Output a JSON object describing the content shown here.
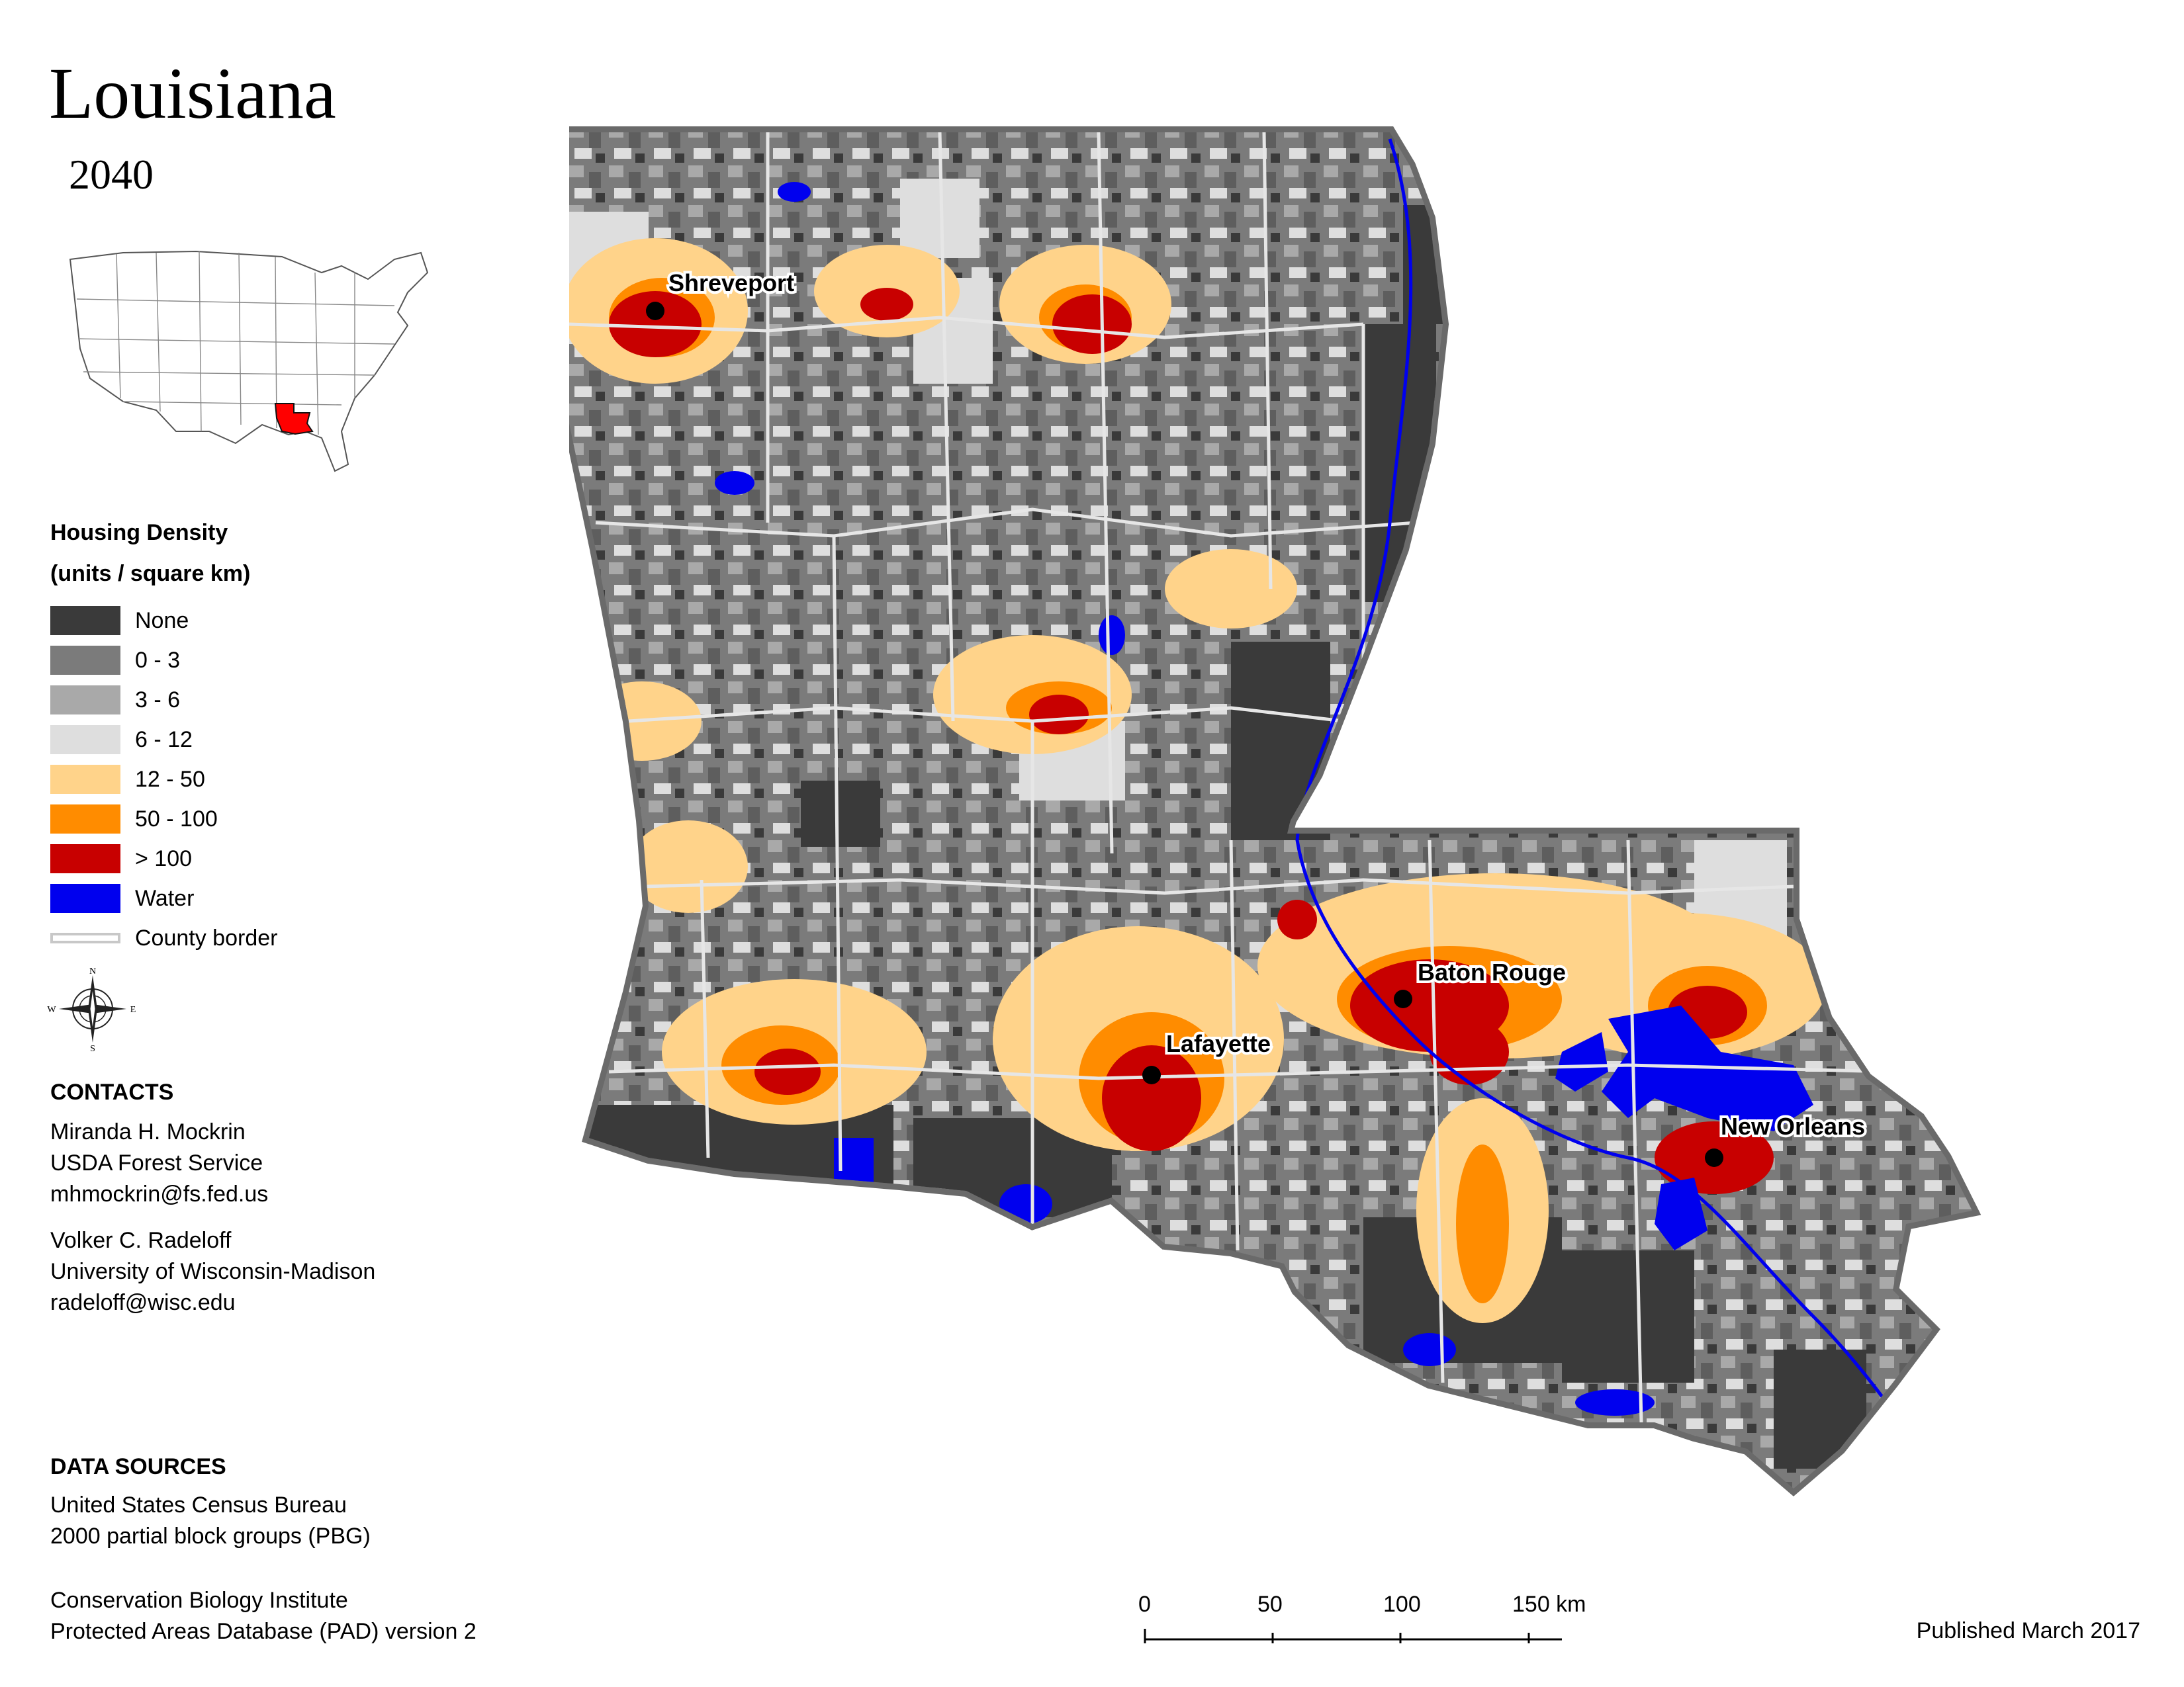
{
  "title": "Louisiana",
  "subtitle": "2040",
  "legend": {
    "heading": "Housing Density",
    "units": "(units / square km)",
    "items": [
      {
        "label": "None",
        "color": "#3a3a3a"
      },
      {
        "label": "0 - 3",
        "color": "#7b7b7b"
      },
      {
        "label": "3 - 6",
        "color": "#a9a9a9"
      },
      {
        "label": "6 - 12",
        "color": "#dedede"
      },
      {
        "label": "12 - 50",
        "color": "#ffd38a"
      },
      {
        "label": "50 - 100",
        "color": "#ff8c00"
      },
      {
        "label": "> 100",
        "color": "#c80000"
      },
      {
        "label": "Water",
        "color": "#0000ee"
      }
    ],
    "border_label": "County border"
  },
  "compass": {
    "n": "N",
    "s": "S",
    "e": "E",
    "w": "W"
  },
  "contacts": {
    "heading": "CONTACTS",
    "people": [
      {
        "name": "Miranda H. Mockrin",
        "org": "USDA Forest Service",
        "email": "mhmockrin@fs.fed.us"
      },
      {
        "name": "Volker C. Radeloff",
        "org": "University of Wisconsin-Madison",
        "email": "radeloff@wisc.edu"
      }
    ]
  },
  "data_sources": {
    "heading": "DATA SOURCES",
    "lines": [
      "United States Census Bureau",
      "2000 partial block groups (PBG)",
      "Conservation Biology Institute",
      "Protected Areas Database (PAD) version 2"
    ]
  },
  "cities": [
    {
      "name": "Shreveport"
    },
    {
      "name": "Baton Rouge"
    },
    {
      "name": "Lafayette"
    },
    {
      "name": "New Orleans"
    }
  ],
  "scale_bar": {
    "ticks": [
      "0",
      "50",
      "100",
      "150 km"
    ]
  },
  "published": "Published March 2017"
}
